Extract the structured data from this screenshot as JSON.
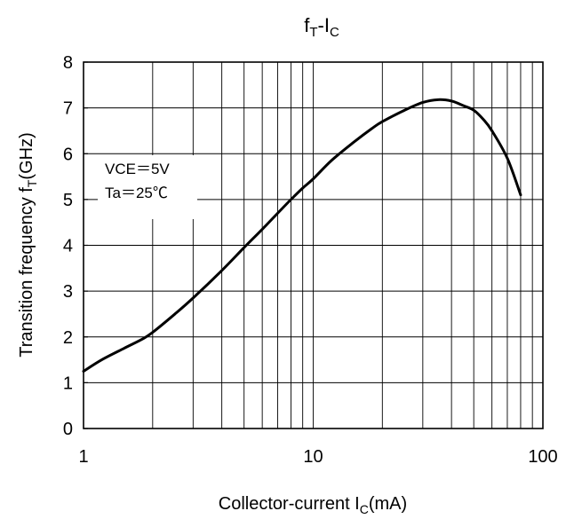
{
  "chart_data": {
    "type": "line",
    "title": {
      "main": "f",
      "main_sub": "T",
      "sep": "-I",
      "sep_sub": "C"
    },
    "xlabel": {
      "pre": "Collector-current I",
      "sub": "C",
      "post": "(mA)"
    },
    "ylabel": {
      "pre": "Transition frequency f",
      "sub": "T",
      "post": "(GHz)"
    },
    "x_scale": "log",
    "xlim": [
      1,
      100
    ],
    "ylim": [
      0,
      8
    ],
    "x_ticks": [
      1,
      10,
      100
    ],
    "x_tick_labels": [
      "1",
      "10",
      "100"
    ],
    "y_ticks": [
      0,
      1,
      2,
      3,
      4,
      5,
      6,
      7,
      8
    ],
    "y_tick_labels": [
      "0",
      "1",
      "2",
      "3",
      "4",
      "5",
      "6",
      "7",
      "8"
    ],
    "grid": true,
    "annotations": [
      "VCE＝5V",
      "Ta＝25℃"
    ],
    "series": [
      {
        "x": [
          1,
          1.2,
          1.5,
          1.8,
          2,
          2.5,
          3,
          4,
          5,
          6,
          7,
          8,
          9,
          10,
          12,
          15,
          18,
          20,
          25,
          30,
          35,
          40,
          45,
          50,
          55,
          60,
          70,
          80
        ],
        "y": [
          1.25,
          1.5,
          1.75,
          1.95,
          2.1,
          2.5,
          2.85,
          3.45,
          3.95,
          4.35,
          4.7,
          5.0,
          5.25,
          5.45,
          5.85,
          6.25,
          6.55,
          6.7,
          6.95,
          7.12,
          7.18,
          7.15,
          7.05,
          6.95,
          6.75,
          6.5,
          5.9,
          5.1
        ],
        "color": "#000000"
      }
    ]
  }
}
